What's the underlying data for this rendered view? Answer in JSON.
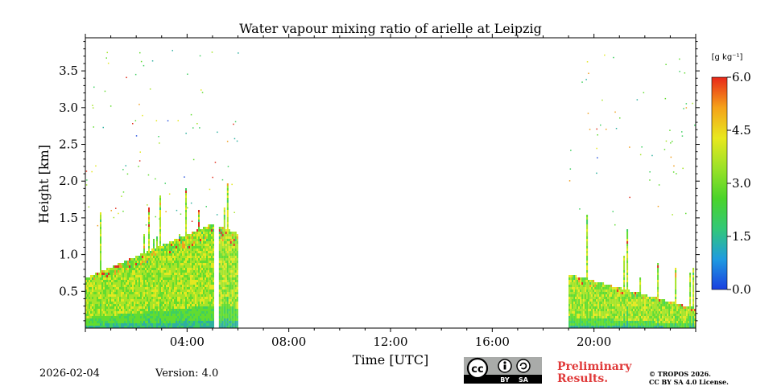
{
  "chart_data": {
    "type": "heatmap",
    "title": "Water vapour mixing ratio of arielle at Leipzig",
    "xlabel": "Time [UTC]",
    "ylabel": "Height [km]",
    "xlim_hours": [
      0,
      24
    ],
    "ylim_km": [
      0,
      3.95
    ],
    "x_ticks": [
      {
        "hour": 4,
        "label": "04:00"
      },
      {
        "hour": 8,
        "label": "08:00"
      },
      {
        "hour": 12,
        "label": "12:00"
      },
      {
        "hour": 16,
        "label": "16:00"
      },
      {
        "hour": 20,
        "label": "20:00"
      }
    ],
    "y_ticks": [
      {
        "km": 0.5,
        "label": "0.5"
      },
      {
        "km": 1.0,
        "label": "1.0"
      },
      {
        "km": 1.5,
        "label": "1.5"
      },
      {
        "km": 2.0,
        "label": "2.0"
      },
      {
        "km": 2.5,
        "label": "2.5"
      },
      {
        "km": 3.0,
        "label": "3.0"
      },
      {
        "km": 3.5,
        "label": "3.5"
      }
    ],
    "colorbar": {
      "label": "[g kg⁻¹]",
      "range": [
        0,
        6
      ],
      "ticks": [
        {
          "value": 0.0,
          "label": "0.0"
        },
        {
          "value": 1.5,
          "label": "1.5"
        },
        {
          "value": 3.0,
          "label": "3.0"
        },
        {
          "value": 4.5,
          "label": "4.5"
        },
        {
          "value": 6.0,
          "label": "6.0"
        }
      ],
      "colors": [
        "#1a3fe0",
        "#1f9be0",
        "#32c878",
        "#4ad42a",
        "#9be228",
        "#e8e81e",
        "#f5a21a",
        "#e8281a"
      ]
    },
    "data_segments": [
      {
        "name": "night-morning",
        "start_hour": 0.0,
        "end_hour": 5.05,
        "top_km": 0.7,
        "top_end_km": 1.45
      },
      {
        "name": "morning-2",
        "start_hour": 5.25,
        "end_hour": 6.0,
        "top_km": 1.4,
        "top_end_km": 1.3
      },
      {
        "name": "evening",
        "start_hour": 19.0,
        "end_hour": 24.0,
        "top_km": 0.75,
        "top_end_km": 0.28
      }
    ]
  },
  "date": "2026-02-04",
  "version": "Version: 4.0",
  "cc_badge": {
    "text": "cc",
    "by": "BY",
    "sa": "SA"
  },
  "preliminary": {
    "line1": "Preliminary",
    "line2": "Results."
  },
  "license": {
    "line1": "© TROPOS 2026.",
    "line2": "CC BY SA 4.0 License."
  }
}
